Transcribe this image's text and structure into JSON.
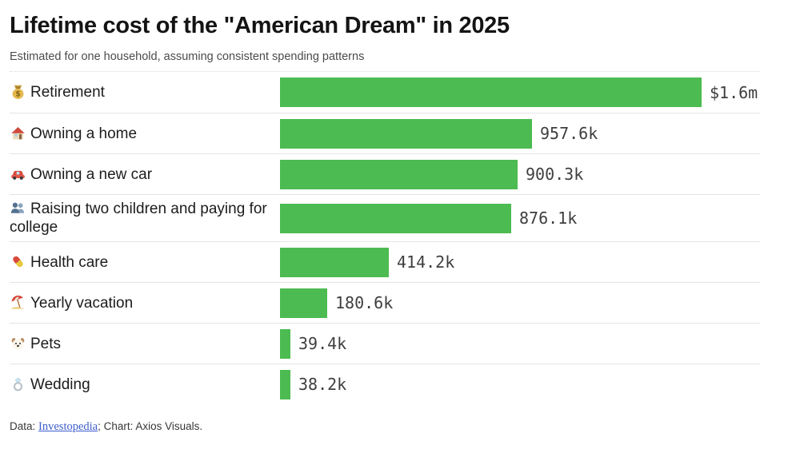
{
  "header": {
    "title": "Lifetime cost of the \"American Dream\" in 2025",
    "subtitle": "Estimated for one household, assuming consistent spending patterns"
  },
  "chart_data": {
    "type": "bar",
    "orientation": "horizontal",
    "unit": "USD thousands",
    "xmax_k": 1600,
    "grid": "off",
    "legend": "none",
    "categories": [
      "Retirement",
      "Owning a home",
      "Owning a new car",
      "Raising two children and paying for college",
      "Health care",
      "Yearly vacation",
      "Pets",
      "Wedding"
    ],
    "icons": [
      "money-bag",
      "house",
      "car",
      "two-people",
      "pill",
      "beach-umbrella",
      "dog-face",
      "ring"
    ],
    "icon_chars": [
      "💰",
      "🏠",
      "🚗",
      "👥",
      "💊",
      "🏖️",
      "🐶",
      "💍"
    ],
    "values_k": [
      1600,
      957.6,
      900.3,
      876.1,
      414.2,
      180.6,
      39.4,
      38.2
    ],
    "value_labels": [
      "$1.6m",
      "957.6k",
      "900.3k",
      "876.1k",
      "414.2k",
      "180.6k",
      "39.4k",
      "38.2k"
    ]
  },
  "colors": {
    "bar_green": "#4cbb51",
    "link_blue": "#3d5ecc",
    "separator": "#e4e4e4"
  },
  "footer": {
    "prefix": "Data: ",
    "link": "Investopedia",
    "suffix": "; Chart: Axios Visuals."
  }
}
